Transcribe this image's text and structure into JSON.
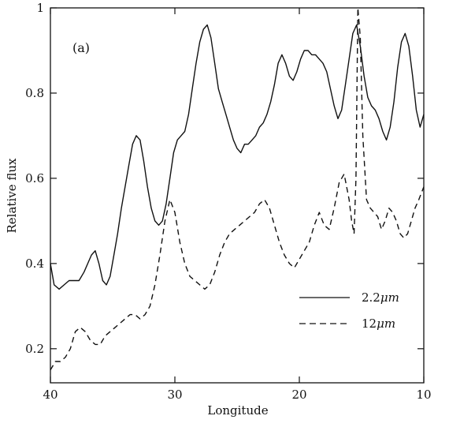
{
  "chart_data": {
    "type": "line",
    "panel_label": "(a)",
    "xlabel": "Longitude",
    "ylabel": "Relative flux",
    "xlim": [
      40,
      10
    ],
    "ylim": [
      0.12,
      1.0
    ],
    "x_reversed": true,
    "x_ticks": [
      40,
      30,
      20,
      10
    ],
    "x_tick_labels": [
      "40",
      "30",
      "20",
      "10"
    ],
    "y_ticks": [
      0.2,
      0.4,
      0.6,
      0.8,
      1.0
    ],
    "y_tick_labels": [
      "0.2",
      "0.4",
      "0.6",
      "0.8",
      "1"
    ],
    "grid": false,
    "legend_position": "lower-right",
    "series": [
      {
        "name": "2.2μm",
        "legend_main": "2.2",
        "legend_unit": "μm",
        "style": "solid",
        "color": "#111111",
        "x": [
          40.0,
          39.7,
          39.3,
          38.9,
          38.5,
          38.1,
          37.7,
          37.3,
          37.0,
          36.7,
          36.4,
          36.1,
          35.8,
          35.5,
          35.2,
          34.9,
          34.6,
          34.3,
          34.0,
          33.7,
          33.4,
          33.1,
          32.8,
          32.5,
          32.2,
          31.9,
          31.6,
          31.3,
          31.0,
          30.7,
          30.4,
          30.1,
          29.8,
          29.5,
          29.2,
          28.9,
          28.6,
          28.3,
          28.0,
          27.7,
          27.4,
          27.1,
          26.8,
          26.5,
          26.2,
          25.9,
          25.6,
          25.3,
          25.0,
          24.7,
          24.4,
          24.1,
          23.8,
          23.5,
          23.2,
          22.9,
          22.6,
          22.3,
          22.0,
          21.7,
          21.4,
          21.1,
          20.8,
          20.5,
          20.2,
          19.9,
          19.6,
          19.3,
          19.0,
          18.7,
          18.4,
          18.1,
          17.8,
          17.5,
          17.2,
          16.9,
          16.6,
          16.3,
          16.0,
          15.7,
          15.4,
          15.1,
          14.8,
          14.5,
          14.2,
          13.9,
          13.6,
          13.3,
          13.0,
          12.7,
          12.4,
          12.1,
          11.8,
          11.5,
          11.2,
          10.9,
          10.6,
          10.3,
          10.0
        ],
        "y": [
          0.4,
          0.35,
          0.34,
          0.35,
          0.36,
          0.36,
          0.36,
          0.38,
          0.4,
          0.42,
          0.43,
          0.4,
          0.36,
          0.35,
          0.37,
          0.42,
          0.47,
          0.53,
          0.58,
          0.63,
          0.68,
          0.7,
          0.69,
          0.64,
          0.58,
          0.53,
          0.5,
          0.49,
          0.5,
          0.54,
          0.6,
          0.66,
          0.69,
          0.7,
          0.71,
          0.75,
          0.81,
          0.87,
          0.92,
          0.95,
          0.96,
          0.93,
          0.87,
          0.81,
          0.78,
          0.75,
          0.72,
          0.69,
          0.67,
          0.66,
          0.68,
          0.68,
          0.69,
          0.7,
          0.72,
          0.73,
          0.75,
          0.78,
          0.82,
          0.87,
          0.89,
          0.87,
          0.84,
          0.83,
          0.85,
          0.88,
          0.9,
          0.9,
          0.89,
          0.89,
          0.88,
          0.87,
          0.85,
          0.81,
          0.77,
          0.74,
          0.76,
          0.82,
          0.88,
          0.94,
          0.96,
          0.91,
          0.84,
          0.79,
          0.77,
          0.76,
          0.74,
          0.71,
          0.69,
          0.72,
          0.78,
          0.86,
          0.92,
          0.94,
          0.91,
          0.84,
          0.76,
          0.72,
          0.75
        ]
      },
      {
        "name": "12μm",
        "legend_main": "12",
        "legend_unit": "μm",
        "style": "dashed",
        "color": "#111111",
        "x": [
          40.0,
          39.6,
          39.2,
          38.8,
          38.4,
          38.0,
          37.6,
          37.2,
          36.8,
          36.4,
          36.0,
          35.6,
          35.2,
          34.8,
          34.4,
          34.0,
          33.6,
          33.2,
          32.8,
          32.4,
          32.0,
          31.6,
          31.2,
          30.8,
          30.4,
          30.0,
          29.6,
          29.2,
          28.8,
          28.4,
          28.0,
          27.6,
          27.2,
          26.8,
          26.4,
          26.0,
          25.6,
          25.2,
          24.8,
          24.4,
          24.0,
          23.6,
          23.2,
          22.8,
          22.4,
          22.0,
          21.6,
          21.2,
          20.8,
          20.4,
          20.0,
          19.6,
          19.2,
          18.8,
          18.4,
          18.0,
          17.6,
          17.2,
          16.8,
          16.4,
          16.0,
          15.8,
          15.6,
          15.45,
          15.3,
          15.1,
          14.9,
          14.6,
          14.3,
          14.0,
          13.7,
          13.4,
          13.1,
          12.8,
          12.5,
          12.2,
          11.9,
          11.6,
          11.3,
          11.0,
          10.7,
          10.4,
          10.0
        ],
        "y": [
          0.15,
          0.17,
          0.17,
          0.18,
          0.2,
          0.24,
          0.25,
          0.24,
          0.22,
          0.21,
          0.21,
          0.23,
          0.24,
          0.25,
          0.26,
          0.27,
          0.28,
          0.28,
          0.27,
          0.28,
          0.3,
          0.35,
          0.42,
          0.5,
          0.55,
          0.52,
          0.45,
          0.4,
          0.37,
          0.36,
          0.35,
          0.34,
          0.35,
          0.38,
          0.42,
          0.45,
          0.47,
          0.48,
          0.49,
          0.5,
          0.51,
          0.52,
          0.54,
          0.55,
          0.53,
          0.49,
          0.45,
          0.42,
          0.4,
          0.39,
          0.41,
          0.43,
          0.45,
          0.49,
          0.52,
          0.49,
          0.48,
          0.53,
          0.59,
          0.61,
          0.55,
          0.5,
          0.47,
          0.6,
          1.0,
          0.93,
          0.7,
          0.55,
          0.53,
          0.52,
          0.51,
          0.48,
          0.5,
          0.53,
          0.52,
          0.5,
          0.47,
          0.46,
          0.47,
          0.5,
          0.53,
          0.55,
          0.58
        ]
      }
    ]
  }
}
